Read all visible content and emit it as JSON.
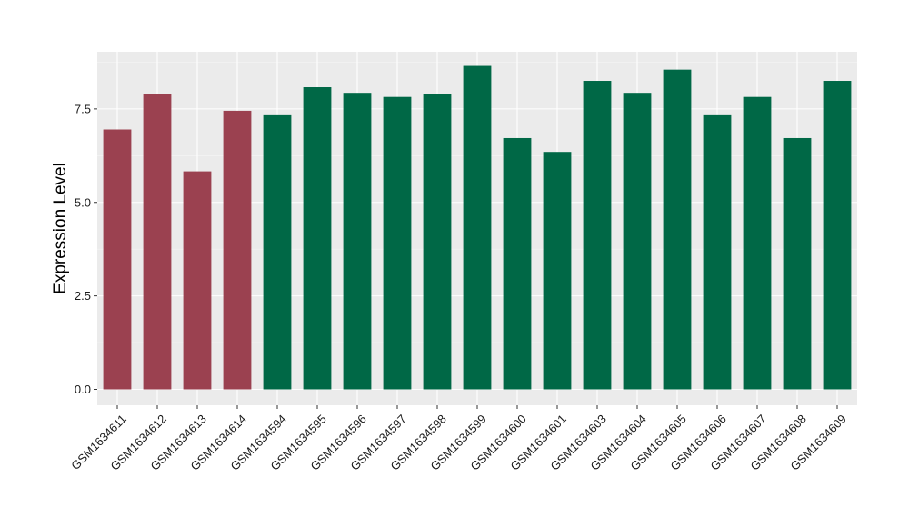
{
  "chart_data": {
    "type": "bar",
    "title": "",
    "xlabel": "",
    "ylabel": "Expression Level",
    "ylim": [
      0,
      9.0
    ],
    "yticks": [
      0.0,
      2.5,
      5.0,
      7.5
    ],
    "ytick_labels": [
      "0.0",
      "2.5",
      "5.0",
      "7.5"
    ],
    "grid": true,
    "legend": "none",
    "categories": [
      "GSM1634611",
      "GSM1634612",
      "GSM1634613",
      "GSM1634614",
      "GSM1634594",
      "GSM1634595",
      "GSM1634596",
      "GSM1634597",
      "GSM1634598",
      "GSM1634599",
      "GSM1634600",
      "GSM1634601",
      "GSM1634603",
      "GSM1634604",
      "GSM1634605",
      "GSM1634606",
      "GSM1634607",
      "GSM1634608",
      "GSM1634609"
    ],
    "values": [
      6.95,
      7.9,
      5.83,
      7.45,
      7.33,
      8.08,
      7.93,
      7.82,
      7.9,
      8.65,
      6.72,
      6.35,
      8.25,
      7.93,
      8.55,
      7.33,
      7.82,
      6.72,
      8.25
    ],
    "groups": [
      0,
      0,
      0,
      0,
      1,
      1,
      1,
      1,
      1,
      1,
      1,
      1,
      1,
      1,
      1,
      1,
      1,
      1,
      1
    ]
  },
  "colors": {
    "group0": "#9b4150",
    "group1": "#006846",
    "panel_background": "#ebebeb",
    "grid_major": "#ffffff",
    "grid_minor": "#f5f5f5"
  }
}
